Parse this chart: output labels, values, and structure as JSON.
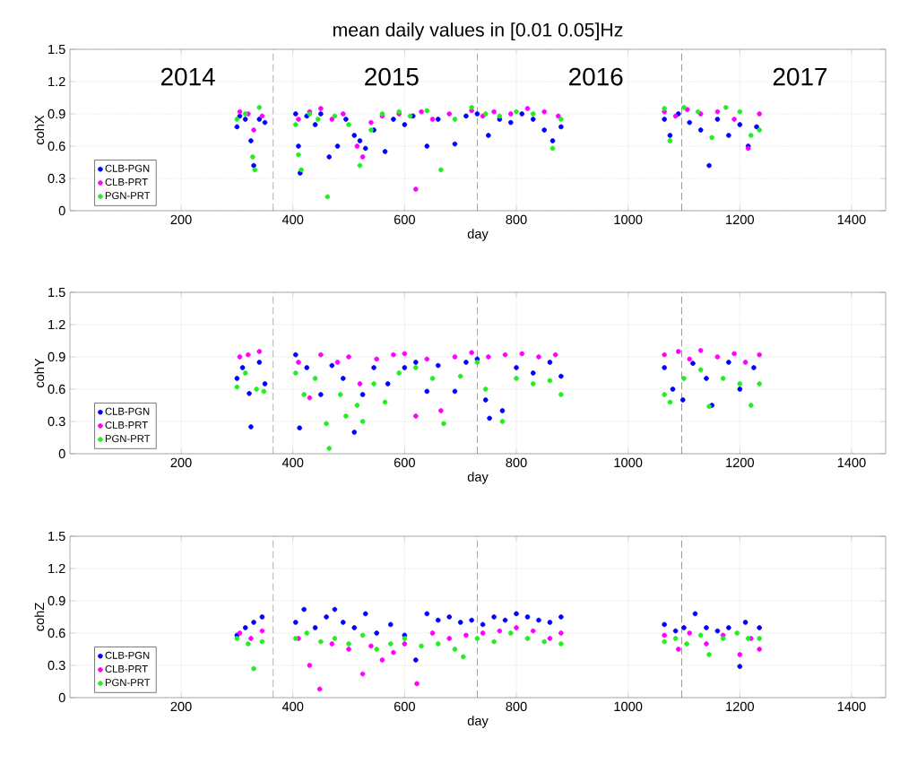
{
  "chart_data": [
    {
      "type": "scatter",
      "title": "mean daily values in [0.01 0.05]Hz",
      "xlabel": "day",
      "ylabel": "cohX",
      "xlim": [
        1,
        1461
      ],
      "ylim": [
        0,
        1.5
      ],
      "xticks": [
        200,
        400,
        600,
        800,
        1000,
        1200,
        1400
      ],
      "yticks": [
        0,
        0.3,
        0.6,
        0.9,
        1.2,
        1.5
      ],
      "grid": true,
      "legend": "bottom left",
      "marker": "circle",
      "annotations": [
        "2014",
        "2015",
        "2016",
        "2017"
      ],
      "ref_lines": [
        {
          "axis": "x",
          "value": 365,
          "line_style": "dashed"
        },
        {
          "axis": "x",
          "value": 730,
          "line_style": "dashed"
        },
        {
          "axis": "x",
          "value": 1096,
          "line_style": "dashed"
        }
      ],
      "series": [
        {
          "name": "CLB-PGN",
          "color": "#0000ff",
          "x": [
            300,
            305,
            315,
            325,
            330,
            340,
            350,
            405,
            410,
            413,
            425,
            440,
            450,
            465,
            480,
            495,
            510,
            520,
            530,
            545,
            565,
            580,
            600,
            615,
            640,
            660,
            690,
            710,
            730,
            750,
            770,
            790,
            810,
            830,
            850,
            865,
            880,
            1065,
            1075,
            1090,
            1110,
            1130,
            1145,
            1160,
            1180,
            1200,
            1215,
            1230
          ],
          "values": [
            0.78,
            0.88,
            0.85,
            0.65,
            0.42,
            0.85,
            0.82,
            0.9,
            0.6,
            0.35,
            0.88,
            0.8,
            0.9,
            0.5,
            0.6,
            0.85,
            0.7,
            0.65,
            0.58,
            0.75,
            0.55,
            0.85,
            0.8,
            0.88,
            0.6,
            0.85,
            0.62,
            0.88,
            0.9,
            0.7,
            0.85,
            0.82,
            0.9,
            0.85,
            0.75,
            0.65,
            0.78,
            0.85,
            0.7,
            0.9,
            0.82,
            0.75,
            0.42,
            0.85,
            0.7,
            0.8,
            0.6,
            0.78
          ]
        },
        {
          "name": "CLB-PRT",
          "color": "#ff00ff",
          "x": [
            305,
            320,
            330,
            345,
            410,
            430,
            450,
            470,
            490,
            515,
            525,
            540,
            560,
            590,
            620,
            630,
            650,
            680,
            720,
            740,
            760,
            790,
            820,
            850,
            875,
            1065,
            1085,
            1106,
            1130,
            1160,
            1190,
            1215,
            1235
          ],
          "values": [
            0.92,
            0.9,
            0.75,
            0.88,
            0.85,
            0.92,
            0.95,
            0.85,
            0.9,
            0.6,
            0.5,
            0.82,
            0.88,
            0.9,
            0.2,
            0.92,
            0.85,
            0.9,
            0.93,
            0.88,
            0.92,
            0.9,
            0.95,
            0.92,
            0.88,
            0.92,
            0.88,
            0.94,
            0.9,
            0.92,
            0.85,
            0.58,
            0.9
          ]
        },
        {
          "name": "PGN-PRT",
          "color": "#22ee22",
          "x": [
            300,
            315,
            328,
            332,
            340,
            405,
            410,
            415,
            430,
            445,
            462,
            475,
            500,
            520,
            540,
            560,
            590,
            610,
            640,
            665,
            690,
            720,
            745,
            770,
            800,
            830,
            865,
            880,
            1065,
            1075,
            1100,
            1125,
            1150,
            1175,
            1200,
            1220,
            1235
          ],
          "values": [
            0.85,
            0.9,
            0.5,
            0.38,
            0.96,
            0.8,
            0.52,
            0.38,
            0.9,
            0.85,
            0.13,
            0.88,
            0.8,
            0.42,
            0.75,
            0.9,
            0.92,
            0.88,
            0.93,
            0.38,
            0.85,
            0.96,
            0.9,
            0.88,
            0.92,
            0.9,
            0.58,
            0.85,
            0.95,
            0.65,
            0.96,
            0.92,
            0.68,
            0.96,
            0.92,
            0.7,
            0.75
          ]
        }
      ]
    },
    {
      "type": "scatter",
      "xlabel": "day",
      "ylabel": "cohY",
      "xlim": [
        1,
        1461
      ],
      "ylim": [
        0,
        1.5
      ],
      "xticks": [
        200,
        400,
        600,
        800,
        1000,
        1200,
        1400
      ],
      "yticks": [
        0,
        0.3,
        0.6,
        0.9,
        1.2,
        1.5
      ],
      "grid": true,
      "legend": "bottom left",
      "marker": "circle",
      "ref_lines": [
        {
          "axis": "x",
          "value": 365,
          "line_style": "dashed"
        },
        {
          "axis": "x",
          "value": 730,
          "line_style": "dashed"
        },
        {
          "axis": "x",
          "value": 1096,
          "line_style": "dashed"
        }
      ],
      "series": [
        {
          "name": "CLB-PGN",
          "color": "#0000ff",
          "x": [
            300,
            310,
            322,
            325,
            340,
            350,
            405,
            412,
            425,
            450,
            470,
            490,
            510,
            525,
            545,
            570,
            600,
            620,
            640,
            660,
            690,
            710,
            730,
            745,
            752,
            775,
            800,
            830,
            860,
            880,
            1065,
            1080,
            1098,
            1116,
            1140,
            1150,
            1180,
            1200,
            1225
          ],
          "values": [
            0.7,
            0.8,
            0.56,
            0.25,
            0.85,
            0.65,
            0.92,
            0.24,
            0.8,
            0.55,
            0.82,
            0.7,
            0.2,
            0.55,
            0.8,
            0.65,
            0.8,
            0.85,
            0.58,
            0.82,
            0.58,
            0.85,
            0.88,
            0.5,
            0.33,
            0.4,
            0.8,
            0.75,
            0.85,
            0.72,
            0.8,
            0.6,
            0.5,
            0.84,
            0.7,
            0.45,
            0.85,
            0.6,
            0.8
          ]
        },
        {
          "name": "CLB-PRT",
          "color": "#ff00ff",
          "x": [
            305,
            320,
            340,
            410,
            430,
            450,
            480,
            500,
            520,
            550,
            580,
            600,
            620,
            640,
            665,
            690,
            720,
            750,
            780,
            810,
            840,
            870,
            1065,
            1090,
            1110,
            1130,
            1160,
            1190,
            1210,
            1235
          ],
          "values": [
            0.9,
            0.92,
            0.95,
            0.85,
            0.52,
            0.92,
            0.85,
            0.9,
            0.65,
            0.88,
            0.92,
            0.93,
            0.35,
            0.88,
            0.4,
            0.9,
            0.94,
            0.9,
            0.92,
            0.93,
            0.9,
            0.92,
            0.92,
            0.95,
            0.88,
            0.96,
            0.9,
            0.93,
            0.85,
            0.92
          ]
        },
        {
          "name": "PGN-PRT",
          "color": "#22ee22",
          "x": [
            300,
            315,
            335,
            348,
            405,
            420,
            440,
            460,
            465,
            485,
            495,
            515,
            525,
            545,
            565,
            590,
            620,
            650,
            670,
            700,
            730,
            745,
            775,
            800,
            830,
            860,
            880,
            1065,
            1075,
            1100,
            1130,
            1145,
            1170,
            1200,
            1220,
            1235
          ],
          "values": [
            0.62,
            0.75,
            0.6,
            0.58,
            0.75,
            0.55,
            0.7,
            0.28,
            0.05,
            0.55,
            0.35,
            0.45,
            0.3,
            0.65,
            0.48,
            0.75,
            0.8,
            0.7,
            0.28,
            0.72,
            0.85,
            0.6,
            0.3,
            0.7,
            0.65,
            0.68,
            0.55,
            0.55,
            0.48,
            0.7,
            0.78,
            0.44,
            0.7,
            0.65,
            0.45,
            0.65
          ]
        }
      ]
    },
    {
      "type": "scatter",
      "xlabel": "day",
      "ylabel": "cohZ",
      "xlim": [
        1,
        1461
      ],
      "ylim": [
        0,
        1.5
      ],
      "xticks": [
        200,
        400,
        600,
        800,
        1000,
        1200,
        1400
      ],
      "yticks": [
        0,
        0.3,
        0.6,
        0.9,
        1.2,
        1.5
      ],
      "grid": true,
      "legend": "bottom left",
      "marker": "circle",
      "ref_lines": [
        {
          "axis": "x",
          "value": 365,
          "line_style": "dashed"
        },
        {
          "axis": "x",
          "value": 730,
          "line_style": "dashed"
        },
        {
          "axis": "x",
          "value": 1096,
          "line_style": "dashed"
        }
      ],
      "series": [
        {
          "name": "CLB-PGN",
          "color": "#0000ff",
          "x": [
            300,
            315,
            330,
            345,
            405,
            420,
            440,
            460,
            475,
            490,
            510,
            530,
            550,
            575,
            600,
            620,
            640,
            660,
            680,
            700,
            720,
            740,
            760,
            780,
            800,
            820,
            840,
            860,
            880,
            1065,
            1085,
            1100,
            1120,
            1140,
            1160,
            1180,
            1200,
            1210,
            1235
          ],
          "values": [
            0.58,
            0.65,
            0.7,
            0.75,
            0.7,
            0.82,
            0.65,
            0.75,
            0.82,
            0.7,
            0.65,
            0.78,
            0.6,
            0.68,
            0.58,
            0.35,
            0.78,
            0.72,
            0.75,
            0.7,
            0.72,
            0.68,
            0.75,
            0.72,
            0.78,
            0.75,
            0.72,
            0.7,
            0.75,
            0.68,
            0.62,
            0.65,
            0.78,
            0.65,
            0.62,
            0.65,
            0.29,
            0.7,
            0.65
          ]
        },
        {
          "name": "CLB-PRT",
          "color": "#ff00ff",
          "x": [
            305,
            325,
            345,
            410,
            430,
            448,
            470,
            500,
            525,
            540,
            560,
            580,
            600,
            622,
            650,
            680,
            710,
            740,
            770,
            800,
            830,
            860,
            880,
            1065,
            1090,
            1110,
            1140,
            1170,
            1200,
            1220,
            1235
          ],
          "values": [
            0.6,
            0.55,
            0.62,
            0.55,
            0.3,
            0.08,
            0.5,
            0.45,
            0.22,
            0.48,
            0.35,
            0.42,
            0.5,
            0.13,
            0.6,
            0.55,
            0.58,
            0.6,
            0.62,
            0.65,
            0.62,
            0.55,
            0.6,
            0.58,
            0.45,
            0.6,
            0.5,
            0.58,
            0.4,
            0.55,
            0.45
          ]
        },
        {
          "name": "PGN-PRT",
          "color": "#22ee22",
          "x": [
            300,
            320,
            330,
            345,
            405,
            425,
            450,
            475,
            500,
            525,
            550,
            575,
            600,
            630,
            660,
            690,
            705,
            730,
            760,
            790,
            820,
            850,
            880,
            1065,
            1085,
            1105,
            1130,
            1145,
            1170,
            1195,
            1215,
            1235
          ],
          "values": [
            0.55,
            0.5,
            0.27,
            0.52,
            0.55,
            0.6,
            0.52,
            0.55,
            0.5,
            0.58,
            0.45,
            0.5,
            0.55,
            0.48,
            0.5,
            0.45,
            0.38,
            0.55,
            0.52,
            0.6,
            0.55,
            0.52,
            0.5,
            0.52,
            0.55,
            0.5,
            0.58,
            0.4,
            0.55,
            0.6,
            0.55,
            0.55
          ]
        }
      ]
    }
  ]
}
